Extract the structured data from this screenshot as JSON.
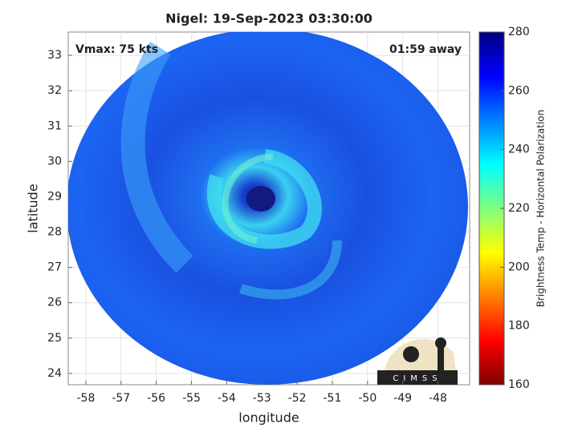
{
  "chart_data": {
    "type": "image",
    "title": "Nigel: 19-Sep-2023 03:30:00",
    "annotations": [
      "Vmax: 75 kts",
      "01:59 away"
    ],
    "xlabel": "longitude",
    "ylabel": "latitude",
    "xlim": [
      -58.5,
      -47.1
    ],
    "ylim": [
      23.68,
      33.66
    ],
    "xticks": [
      -58,
      -57,
      -56,
      -55,
      -54,
      -53,
      -52,
      -51,
      -50,
      -49,
      -48
    ],
    "yticks": [
      24,
      25,
      26,
      27,
      28,
      29,
      30,
      31,
      32,
      33
    ],
    "grid": true,
    "colorbar": {
      "label": "Brightness Temp - Horizontal Polarization",
      "lim": [
        160,
        280
      ],
      "ticks": [
        160,
        180,
        200,
        220,
        240,
        260,
        280
      ]
    },
    "logo": "CIMSS"
  }
}
